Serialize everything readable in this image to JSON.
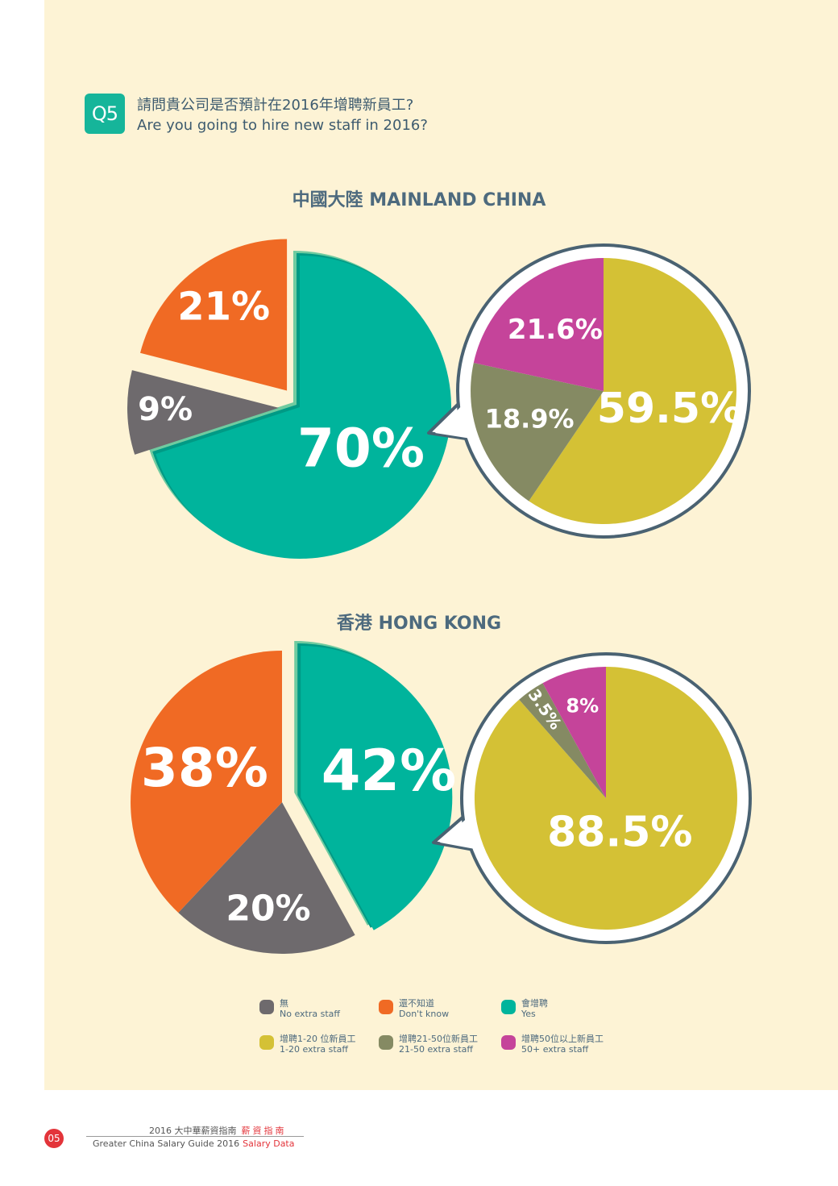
{
  "question": {
    "badge": "Q5",
    "text_zh": "請問貴公司是否預計在2016年增聘新員工?",
    "text_en": "Are you going to hire new staff in 2016?"
  },
  "colors": {
    "no_extra": "#6e6a6d",
    "dont_know": "#f06a24",
    "yes": "#00b49c",
    "yes_edge": "#6fcba0",
    "staff_1_20": "#d4c135",
    "staff_21_50": "#858a63",
    "staff_50_plus": "#c5449a",
    "bubble_border": "#4a6272"
  },
  "legend": [
    {
      "key": "no_extra",
      "zh": "無",
      "en": "No extra staff"
    },
    {
      "key": "dont_know",
      "zh": "還不知道",
      "en": "Don't know"
    },
    {
      "key": "yes",
      "zh": "會增聘",
      "en": "Yes"
    },
    {
      "key": "staff_1_20",
      "zh": "增聘1-20 位新員工",
      "en": "1-20 extra staff"
    },
    {
      "key": "staff_21_50",
      "zh": "增聘21-50位新員工",
      "en": "21-50 extra staff"
    },
    {
      "key": "staff_50_plus",
      "zh": "增聘50位以上新員工",
      "en": "50+ extra staff"
    }
  ],
  "chart_data": [
    {
      "type": "pie",
      "title": "中國大陸 MAINLAND CHINA",
      "main": {
        "slices": [
          {
            "key": "yes",
            "value": 70,
            "label": "70%"
          },
          {
            "key": "no_extra",
            "value": 9,
            "label": "9%"
          },
          {
            "key": "dont_know",
            "value": 21,
            "label": "21%"
          }
        ]
      },
      "breakdown_of_yes": {
        "slices": [
          {
            "key": "staff_1_20",
            "value": 59.5,
            "label": "59.5%"
          },
          {
            "key": "staff_21_50",
            "value": 18.9,
            "label": "18.9%"
          },
          {
            "key": "staff_50_plus",
            "value": 21.6,
            "label": "21.6%"
          }
        ]
      }
    },
    {
      "type": "pie",
      "title": "香港 HONG KONG",
      "main": {
        "slices": [
          {
            "key": "yes",
            "value": 42,
            "label": "42%"
          },
          {
            "key": "no_extra",
            "value": 20,
            "label": "20%"
          },
          {
            "key": "dont_know",
            "value": 38,
            "label": "38%"
          }
        ]
      },
      "breakdown_of_yes": {
        "slices": [
          {
            "key": "staff_1_20",
            "value": 88.5,
            "label": "88.5%"
          },
          {
            "key": "staff_21_50",
            "value": 3.5,
            "label": "3.5%"
          },
          {
            "key": "staff_50_plus",
            "value": 8,
            "label": "8%"
          }
        ]
      }
    }
  ],
  "footer": {
    "page": "05",
    "zh": "2016 大中華薪資指南",
    "zh_accent": "薪資指南",
    "en": "Greater China Salary Guide 2016",
    "en_accent": "Salary Data"
  }
}
